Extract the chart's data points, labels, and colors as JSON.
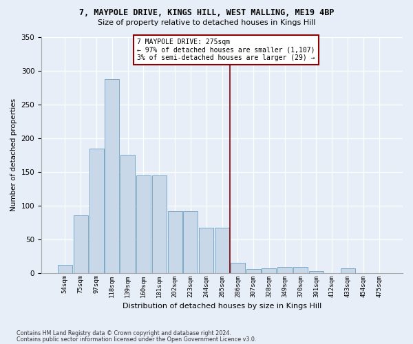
{
  "title1": "7, MAYPOLE DRIVE, KINGS HILL, WEST MALLING, ME19 4BP",
  "title2": "Size of property relative to detached houses in Kings Hill",
  "xlabel": "Distribution of detached houses by size in Kings Hill",
  "ylabel": "Number of detached properties",
  "footer1": "Contains HM Land Registry data © Crown copyright and database right 2024.",
  "footer2": "Contains public sector information licensed under the Open Government Licence v3.0.",
  "bars": [
    {
      "label": "54sqm",
      "value": 12
    },
    {
      "label": "75sqm",
      "value": 85
    },
    {
      "label": "97sqm",
      "value": 185
    },
    {
      "label": "118sqm",
      "value": 288
    },
    {
      "label": "139sqm",
      "value": 175
    },
    {
      "label": "160sqm",
      "value": 145
    },
    {
      "label": "181sqm",
      "value": 145
    },
    {
      "label": "202sqm",
      "value": 92
    },
    {
      "label": "223sqm",
      "value": 92
    },
    {
      "label": "244sqm",
      "value": 67
    },
    {
      "label": "265sqm",
      "value": 67
    },
    {
      "label": "286sqm",
      "value": 15
    },
    {
      "label": "307sqm",
      "value": 6
    },
    {
      "label": "328sqm",
      "value": 7
    },
    {
      "label": "349sqm",
      "value": 9
    },
    {
      "label": "370sqm",
      "value": 9
    },
    {
      "label": "391sqm",
      "value": 3
    },
    {
      "label": "412sqm",
      "value": 0
    },
    {
      "label": "433sqm",
      "value": 7
    },
    {
      "label": "454sqm",
      "value": 0
    },
    {
      "label": "475sqm",
      "value": 0
    }
  ],
  "bar_color": "#c8d8e8",
  "bar_edge_color": "#7aaac8",
  "marker_color": "#8b0000",
  "annotation_title": "7 MAYPOLE DRIVE: 275sqm",
  "annotation_line1": "← 97% of detached houses are smaller (1,107)",
  "annotation_line2": "3% of semi-detached houses are larger (29) →",
  "annotation_box_color": "#8b0000",
  "ylim": [
    0,
    350
  ],
  "yticks": [
    0,
    50,
    100,
    150,
    200,
    250,
    300,
    350
  ],
  "bg_color": "#e8eef8",
  "plot_bg_color": "#e8eef8"
}
